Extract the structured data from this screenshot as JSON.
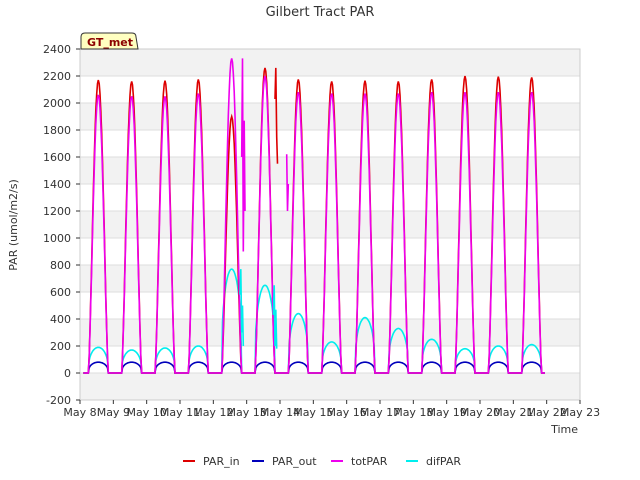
{
  "chart_data": {
    "type": "line",
    "title": "Gilbert Tract PAR",
    "xlabel": "Time",
    "ylabel": "PAR (umol/m2/s)",
    "badge": "GT_met",
    "xlim": [
      8,
      23
    ],
    "ylim": [
      -200,
      2400
    ],
    "yticks": [
      -200,
      0,
      200,
      400,
      600,
      800,
      1000,
      1200,
      1400,
      1600,
      1800,
      2000,
      2200,
      2400
    ],
    "xticks": [
      {
        "value": 8,
        "label": "May 8"
      },
      {
        "value": 9,
        "label": "May 9"
      },
      {
        "value": 10,
        "label": "May 10"
      },
      {
        "value": 11,
        "label": "May 11"
      },
      {
        "value": 12,
        "label": "May 12"
      },
      {
        "value": 13,
        "label": "May 13"
      },
      {
        "value": 14,
        "label": "May 14"
      },
      {
        "value": 15,
        "label": "May 15"
      },
      {
        "value": 16,
        "label": "May 16"
      },
      {
        "value": 17,
        "label": "May 17"
      },
      {
        "value": 18,
        "label": "May 18"
      },
      {
        "value": 19,
        "label": "May 19"
      },
      {
        "value": 20,
        "label": "May 20"
      },
      {
        "value": 21,
        "label": "May 21"
      },
      {
        "value": 22,
        "label": "May 22"
      },
      {
        "value": 23,
        "label": "May 23"
      }
    ],
    "day_start": 8.25,
    "days": 14,
    "day_width": 0.6,
    "series": [
      {
        "name": "PAR_in",
        "color": "#dd0000",
        "daily_peaks": [
          2170,
          2160,
          2165,
          2175,
          1900,
          2260,
          2175,
          2160,
          2165,
          2160,
          2175,
          2200,
          2195,
          2190
        ]
      },
      {
        "name": "PAR_out",
        "color": "#0000bb",
        "daily_peaks": [
          80,
          80,
          80,
          80,
          80,
          80,
          80,
          80,
          80,
          80,
          80,
          80,
          80,
          80
        ]
      },
      {
        "name": "totPAR",
        "color": "#ee00ee",
        "daily_peaks": [
          2060,
          2050,
          2050,
          2070,
          2330,
          2200,
          2080,
          2070,
          2070,
          2070,
          2080,
          2080,
          2080,
          2080
        ]
      },
      {
        "name": "difPAR",
        "color": "#00eeee",
        "daily_peaks": [
          190,
          170,
          185,
          200,
          770,
          650,
          440,
          230,
          410,
          330,
          250,
          180,
          200,
          210
        ]
      }
    ],
    "spikes": [
      {
        "series": "totPAR",
        "x": 12.85,
        "values": [
          1600,
          2330,
          900,
          1870,
          1200
        ]
      },
      {
        "series": "PAR_in",
        "x": 13.85,
        "values": [
          2030,
          2260,
          1750,
          1550
        ]
      },
      {
        "series": "totPAR",
        "x": 14.2,
        "values": [
          1620,
          1200,
          1400
        ]
      },
      {
        "series": "difPAR",
        "x": 12.8,
        "values": [
          580,
          770,
          300,
          500,
          200
        ]
      },
      {
        "series": "difPAR",
        "x": 13.8,
        "values": [
          430,
          650,
          200,
          470,
          180
        ]
      }
    ]
  }
}
